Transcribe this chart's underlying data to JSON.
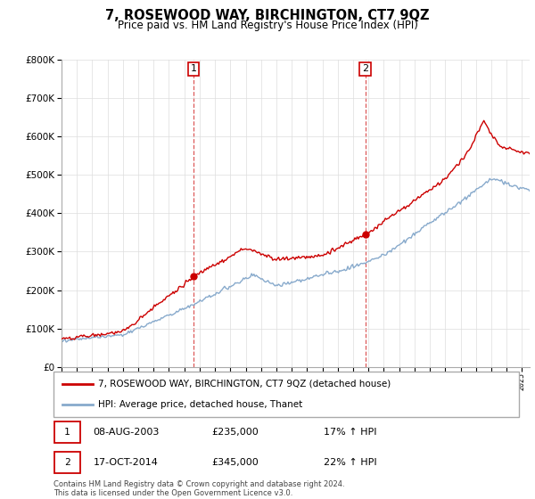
{
  "title": "7, ROSEWOOD WAY, BIRCHINGTON, CT7 9QZ",
  "subtitle": "Price paid vs. HM Land Registry's House Price Index (HPI)",
  "ylim": [
    0,
    800000
  ],
  "xlim_start": 1995,
  "xlim_end": 2025.5,
  "sale1_x": 2003.6,
  "sale1_y": 235000,
  "sale2_x": 2014.8,
  "sale2_y": 345000,
  "sale1_label": "1",
  "sale2_label": "2",
  "vline1_x": 2003.6,
  "vline2_x": 2014.8,
  "red_color": "#cc0000",
  "blue_color": "#88aacc",
  "vline_color": "#cc0000",
  "legend_line1": "7, ROSEWOOD WAY, BIRCHINGTON, CT7 9QZ (detached house)",
  "legend_line2": "HPI: Average price, detached house, Thanet",
  "table_row1": [
    "1",
    "08-AUG-2003",
    "£235,000",
    "17% ↑ HPI"
  ],
  "table_row2": [
    "2",
    "17-OCT-2014",
    "£345,000",
    "22% ↑ HPI"
  ],
  "footer": "Contains HM Land Registry data © Crown copyright and database right 2024.\nThis data is licensed under the Open Government Licence v3.0.",
  "background_color": "#ffffff",
  "grid_color": "#dddddd"
}
